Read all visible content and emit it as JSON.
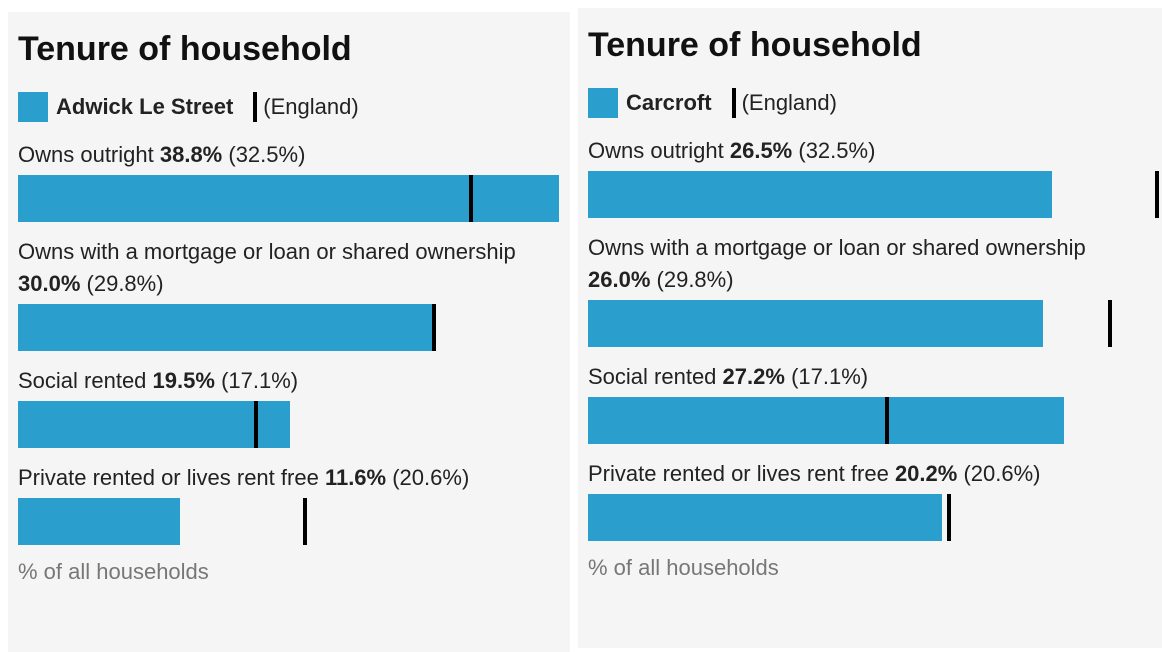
{
  "chart_data": [
    {
      "type": "bar",
      "orientation": "horizontal",
      "title": "Tenure of household",
      "categories": [
        "Owns outright",
        "Owns with a mortgage or loan or shared ownership",
        "Social rented",
        "Private rented or lives rent free"
      ],
      "series": [
        {
          "name": "Adwick Le Street",
          "color": "#2a9fcd",
          "values": [
            38.8,
            30.0,
            19.5,
            11.6
          ],
          "value_labels": [
            "38.8%",
            "30.0%",
            "19.5%",
            "11.6%"
          ]
        },
        {
          "name": "(England)",
          "color": "#000000",
          "values": [
            32.5,
            29.8,
            17.1,
            20.6
          ],
          "value_labels": [
            "(32.5%)",
            "(29.8%)",
            "(17.1%)",
            "(20.6%)"
          ]
        }
      ],
      "xlim": [
        0,
        38.8
      ],
      "xlabel": "% of all households"
    },
    {
      "type": "bar",
      "orientation": "horizontal",
      "title": "Tenure of household",
      "categories": [
        "Owns outright",
        "Owns with a mortgage or loan or shared ownership",
        "Social rented",
        "Private rented or lives rent free"
      ],
      "series": [
        {
          "name": "Carcroft",
          "color": "#2a9fcd",
          "values": [
            26.5,
            26.0,
            27.2,
            20.2
          ],
          "value_labels": [
            "26.5%",
            "26.0%",
            "27.2%",
            "20.2%"
          ]
        },
        {
          "name": "(England)",
          "color": "#000000",
          "values": [
            32.5,
            29.8,
            17.1,
            20.6
          ],
          "value_labels": [
            "(32.5%)",
            "(29.8%)",
            "(17.1%)",
            "(20.6%)"
          ]
        }
      ],
      "xlim": [
        0,
        32.5
      ],
      "xlabel": "% of all households"
    }
  ]
}
